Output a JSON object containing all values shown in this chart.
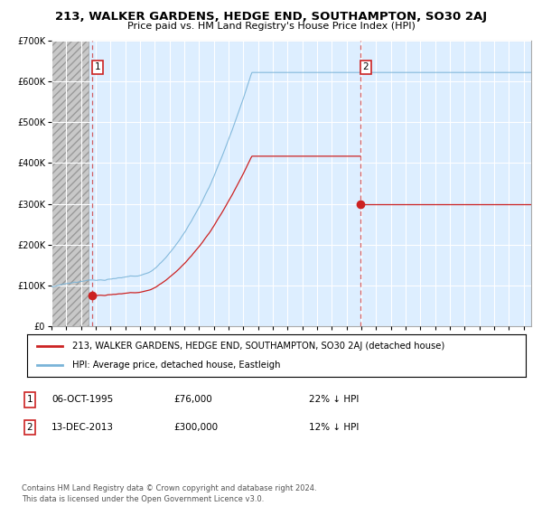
{
  "title": "213, WALKER GARDENS, HEDGE END, SOUTHAMPTON, SO30 2AJ",
  "subtitle": "Price paid vs. HM Land Registry's House Price Index (HPI)",
  "legend_line1": "213, WALKER GARDENS, HEDGE END, SOUTHAMPTON, SO30 2AJ (detached house)",
  "legend_line2": "HPI: Average price, detached house, Eastleigh",
  "annotation1_label": "1",
  "annotation1_date": "06-OCT-1995",
  "annotation1_price": "£76,000",
  "annotation1_hpi": "22% ↓ HPI",
  "annotation2_label": "2",
  "annotation2_date": "13-DEC-2013",
  "annotation2_price": "£300,000",
  "annotation2_hpi": "12% ↓ HPI",
  "footer": "Contains HM Land Registry data © Crown copyright and database right 2024.\nThis data is licensed under the Open Government Licence v3.0.",
  "sale1_year": 1995.77,
  "sale1_value": 76000,
  "sale2_year": 2013.95,
  "sale2_value": 300000,
  "hpi_color": "#7ab4d8",
  "price_color": "#cc2222",
  "plot_bg_color": "#ddeeff",
  "hatch_bg_color": "#cccccc",
  "ylim": [
    0,
    700000
  ],
  "xlim_start": 1993.0,
  "xlim_end": 2025.5,
  "hatch_end": 1995.5
}
